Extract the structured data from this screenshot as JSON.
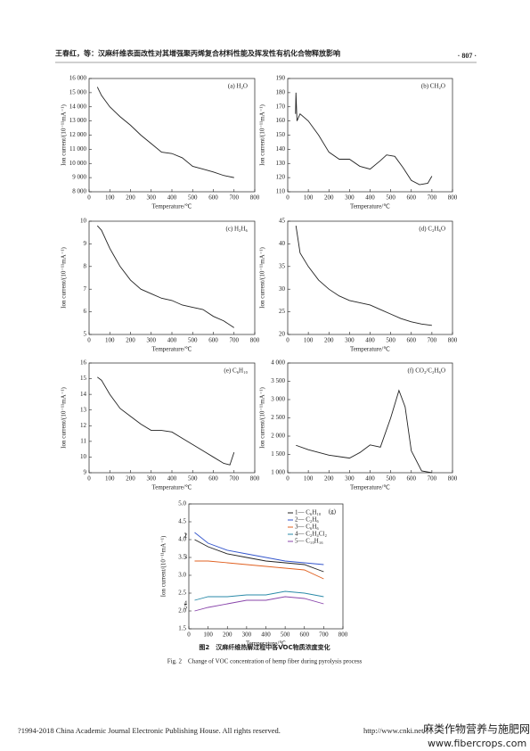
{
  "header": {
    "title": "王春红，等：汉麻纤维表面改性对其增强聚丙烯复合材料性能及挥发性有机化合物释放影响",
    "page": "· 807 ·"
  },
  "chart_data": [
    {
      "type": "line",
      "title": "(a) H₂O",
      "xlabel": "Temperature/℃",
      "ylabel": "Ion current/(10⁻¹¹mA⁻¹)",
      "color": "#222",
      "x": [
        40,
        60,
        100,
        150,
        200,
        250,
        300,
        350,
        400,
        450,
        500,
        550,
        600,
        650,
        700
      ],
      "values": [
        15400,
        14800,
        14000,
        13300,
        12700,
        12000,
        11400,
        10800,
        10700,
        10400,
        9800,
        9600,
        9400,
        9150,
        9000
      ],
      "xlim": [
        0,
        800
      ],
      "ylim": [
        8000,
        16000
      ],
      "xticks": [
        0,
        100,
        200,
        300,
        400,
        500,
        600,
        700,
        800
      ],
      "yticks": [
        {
          "value": 8000,
          "label": "8 000"
        },
        {
          "value": 9000,
          "label": "9 000"
        },
        {
          "value": 10000,
          "label": "10 000"
        },
        {
          "value": 11000,
          "label": "11 000"
        },
        {
          "value": 12000,
          "label": "12 000"
        },
        {
          "value": 13000,
          "label": "13 000"
        },
        {
          "value": 14000,
          "label": "14 000"
        },
        {
          "value": 15000,
          "label": "15 000"
        },
        {
          "value": 16000,
          "label": "16 000"
        }
      ]
    },
    {
      "type": "line",
      "title": "(b) CH₂O",
      "xlabel": "Temperature/℃",
      "ylabel": "Ion current/(10⁻¹¹mA⁻¹)",
      "color": "#222",
      "x": [
        38,
        40,
        45,
        60,
        100,
        150,
        200,
        250,
        300,
        350,
        400,
        450,
        480,
        520,
        560,
        600,
        640,
        680,
        700
      ],
      "values": [
        165,
        180,
        160,
        165,
        160,
        150,
        138,
        133,
        133,
        128,
        126,
        132,
        136,
        135,
        127,
        118,
        115,
        116,
        121
      ],
      "xlim": [
        0,
        800
      ],
      "ylim": [
        110,
        190
      ],
      "xticks": [
        0,
        100,
        200,
        300,
        400,
        500,
        600,
        700,
        800
      ],
      "yticks": [
        110,
        120,
        130,
        140,
        150,
        160,
        170,
        180,
        190
      ]
    },
    {
      "type": "line",
      "title": "(c) H₂H₆",
      "xlabel": "Temperature/℃",
      "ylabel": "Ion current/(10⁻¹¹mA⁻¹)",
      "color": "#222",
      "x": [
        40,
        60,
        100,
        150,
        200,
        250,
        300,
        350,
        400,
        450,
        500,
        550,
        600,
        650,
        700
      ],
      "values": [
        9.8,
        9.6,
        8.8,
        8.0,
        7.4,
        7.0,
        6.8,
        6.6,
        6.5,
        6.3,
        6.2,
        6.1,
        5.8,
        5.6,
        5.3
      ],
      "xlim": [
        0,
        800
      ],
      "ylim": [
        5,
        10
      ],
      "xticks": [
        0,
        100,
        200,
        300,
        400,
        500,
        600,
        700,
        800
      ],
      "yticks": [
        5,
        6,
        7,
        8,
        9,
        10
      ]
    },
    {
      "type": "line",
      "title": "(d) C₂H₆O",
      "xlabel": "Temperature/℃",
      "ylabel": "Ion current/(10⁻¹¹mA⁻¹)",
      "color": "#222",
      "x": [
        40,
        60,
        100,
        150,
        200,
        250,
        300,
        350,
        400,
        450,
        500,
        550,
        600,
        650,
        700
      ],
      "values": [
        44,
        38,
        35,
        32,
        30,
        28.5,
        27.5,
        27,
        26.5,
        25.5,
        24.5,
        23.5,
        22.8,
        22.3,
        22
      ],
      "xlim": [
        0,
        800
      ],
      "ylim": [
        20,
        45
      ],
      "xticks": [
        0,
        100,
        200,
        300,
        400,
        500,
        600,
        700,
        800
      ],
      "yticks": [
        20,
        25,
        30,
        35,
        40,
        45
      ]
    },
    {
      "type": "line",
      "title": "(e) C₆H₁₀",
      "xlabel": "Temperature/℃",
      "ylabel": "Ion current/(10⁻¹¹mA⁻¹)",
      "color": "#222",
      "x": [
        40,
        60,
        100,
        150,
        200,
        250,
        300,
        350,
        400,
        450,
        500,
        550,
        600,
        650,
        680,
        700
      ],
      "values": [
        15.1,
        14.9,
        14.0,
        13.1,
        12.6,
        12.1,
        11.7,
        11.7,
        11.6,
        11.2,
        10.8,
        10.4,
        10.0,
        9.6,
        9.5,
        10.3
      ],
      "xlim": [
        0,
        800
      ],
      "ylim": [
        9,
        16
      ],
      "xticks": [
        0,
        100,
        200,
        300,
        400,
        500,
        600,
        700,
        800
      ],
      "yticks": [
        9,
        10,
        11,
        12,
        13,
        14,
        15,
        16
      ]
    },
    {
      "type": "line",
      "title": "(f) CO₂/C₂H₆O",
      "xlabel": "Temperature/℃",
      "ylabel": "Ion current/(10⁻¹¹mA⁻¹)",
      "color": "#222",
      "x": [
        40,
        100,
        200,
        300,
        350,
        400,
        450,
        500,
        540,
        570,
        600,
        650,
        700
      ],
      "values": [
        1750,
        1630,
        1480,
        1400,
        1550,
        1760,
        1700,
        2500,
        3250,
        2800,
        1600,
        1050,
        1000
      ],
      "xlim": [
        0,
        800
      ],
      "ylim": [
        1000,
        4000
      ],
      "xticks": [
        0,
        100,
        200,
        300,
        400,
        500,
        600,
        700,
        800
      ],
      "yticks": [
        {
          "value": 1000,
          "label": "1 000"
        },
        {
          "value": 1500,
          "label": "1 500"
        },
        {
          "value": 2000,
          "label": "2 000"
        },
        {
          "value": 2500,
          "label": "2 500"
        },
        {
          "value": 3000,
          "label": "3 000"
        },
        {
          "value": 3500,
          "label": "3 500"
        },
        {
          "value": 4000,
          "label": "4 000"
        }
      ]
    },
    {
      "type": "line",
      "title": "(g)",
      "xlabel": "Temperature/℃",
      "ylabel": "Ion current/(10⁻¹¹mA⁻¹)",
      "x": [
        30,
        100,
        200,
        300,
        400,
        500,
        600,
        700
      ],
      "series": [
        {
          "name": "1— C₆H₁₀",
          "tag": "1",
          "color": "#222",
          "values": [
            4.0,
            3.8,
            3.6,
            3.5,
            3.4,
            3.35,
            3.3,
            3.1
          ]
        },
        {
          "name": "2— C₂H₆",
          "tag": "2",
          "color": "#3355cc",
          "values": [
            4.2,
            3.9,
            3.7,
            3.6,
            3.5,
            3.4,
            3.35,
            3.3
          ]
        },
        {
          "name": "3— C₆H₆",
          "tag": "3",
          "color": "#e06020",
          "values": [
            3.4,
            3.4,
            3.35,
            3.3,
            3.25,
            3.2,
            3.15,
            2.9
          ]
        },
        {
          "name": "4— C₂H₄Cl₂",
          "tag": "4",
          "color": "#2a8aa8",
          "values": [
            2.3,
            2.4,
            2.4,
            2.45,
            2.45,
            2.55,
            2.5,
            2.4
          ]
        },
        {
          "name": "5— C₁₀H₁₆",
          "tag": "5",
          "color": "#8844aa",
          "values": [
            2.0,
            2.1,
            2.2,
            2.3,
            2.3,
            2.4,
            2.35,
            2.2
          ]
        }
      ],
      "xlim": [
        0,
        800
      ],
      "ylim": [
        1.5,
        5
      ],
      "xticks": [
        0,
        100,
        200,
        300,
        400,
        500,
        600,
        700,
        800
      ],
      "yticks": [
        1.5,
        {
          "value": 2,
          "label": "2.0"
        },
        2.5,
        {
          "value": 3,
          "label": "3.0"
        },
        3.5,
        {
          "value": 4,
          "label": "4.0"
        },
        4.5,
        {
          "value": 5,
          "label": "5.0"
        }
      ]
    }
  ],
  "caption": {
    "cn": "图2　汉麻纤维热解过程中各VOC物质浓度变化",
    "en": "Fig. 2　Change of VOC concentration of hemp fiber during pyrolysis process"
  },
  "footer": {
    "copyright": "?1994-2018 China Academic Journal Electronic Publishing House. All rights reserved.",
    "url": "http://www.cnki.net",
    "watermark": "麻类作物营养与施肥网",
    "watermark_url": "www.fibercrops.com"
  }
}
